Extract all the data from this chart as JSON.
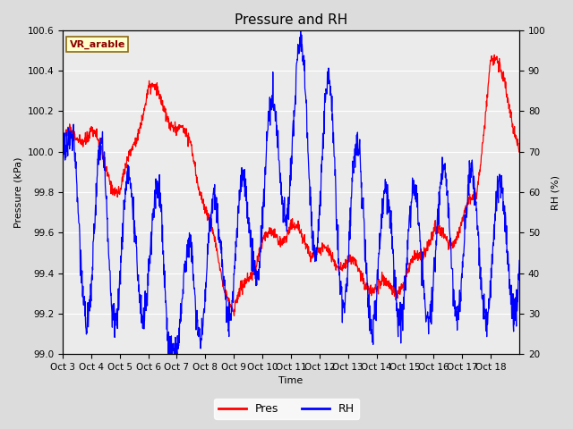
{
  "title": "Pressure and RH",
  "xlabel": "Time",
  "ylabel_left": "Pressure (kPa)",
  "ylabel_right": "RH (%)",
  "legend_label_pres": "Pres",
  "legend_label_rh": "RH",
  "annotation": "VR_arable",
  "pres_color": "red",
  "rh_color": "blue",
  "background_color": "#dcdcdc",
  "plot_bg_color": "#ebebeb",
  "ylim_left": [
    99.0,
    100.6
  ],
  "ylim_right": [
    20,
    100
  ],
  "xtick_labels": [
    "Oct 3",
    "Oct 4",
    "Oct 5",
    "Oct 6",
    "Oct 7",
    "Oct 8",
    "Oct 9",
    "Oct 10",
    "Oct 11",
    "Oct 12",
    "Oct 13",
    "Oct 14",
    "Oct 15",
    "Oct 16",
    "Oct 17",
    "Oct 18"
  ],
  "title_fontsize": 11,
  "axis_label_fontsize": 8,
  "tick_fontsize": 7.5
}
